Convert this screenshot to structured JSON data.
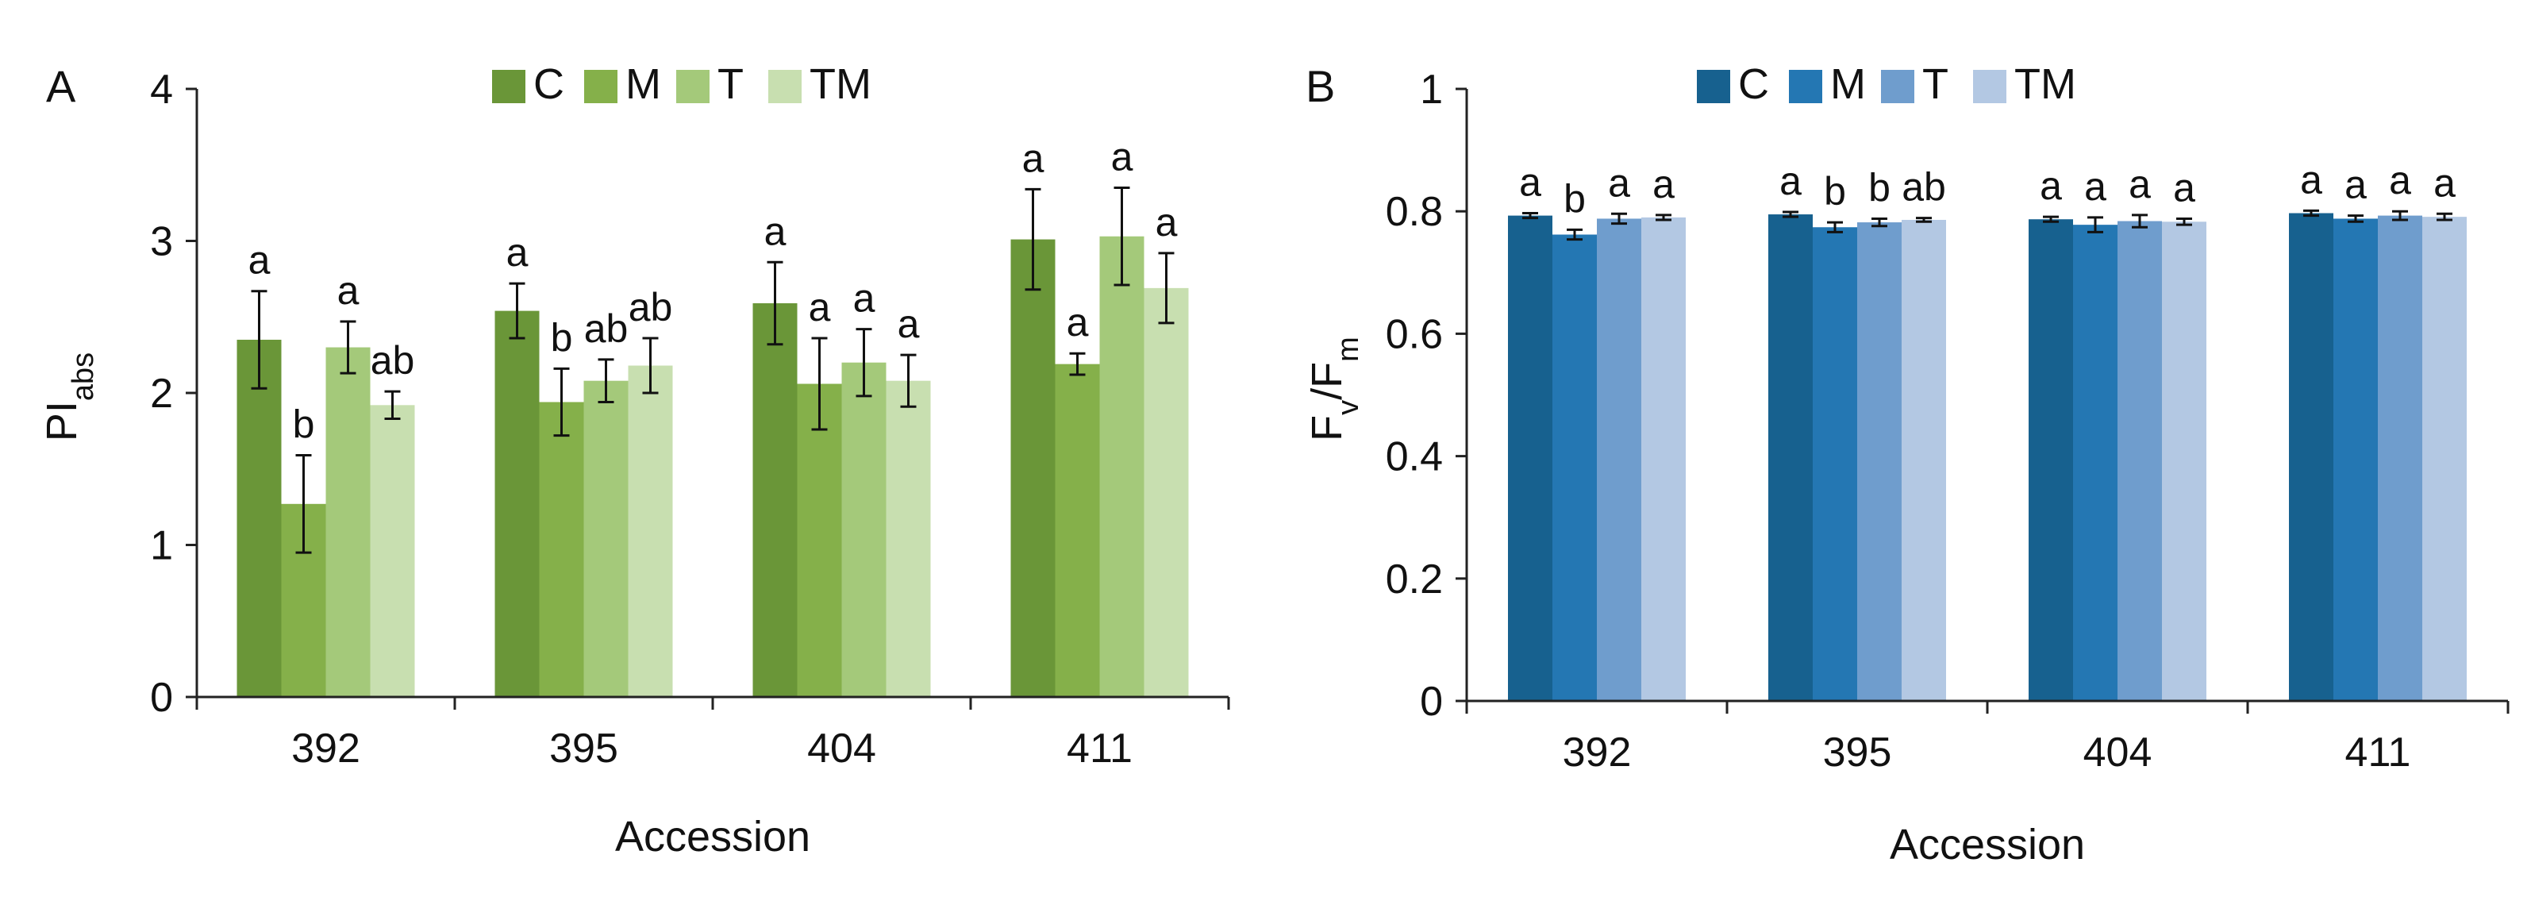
{
  "chart_data": [
    {
      "type": "bar",
      "panel": "A",
      "categories": [
        "392",
        "395",
        "404",
        "411"
      ],
      "xlabel": "Accession",
      "ylabel": "PI",
      "ylabel_sub": "abs",
      "ylim": [
        0,
        4
      ],
      "yticks": [
        "0",
        "1",
        "2",
        "3",
        "4"
      ],
      "legend_position": "top-center",
      "series": [
        {
          "name": "C",
          "color": "#6a9638",
          "values": [
            2.35,
            2.54,
            2.59,
            3.01
          ],
          "errors": [
            0.32,
            0.18,
            0.27,
            0.33
          ],
          "letters": [
            "a",
            "a",
            "a",
            "a"
          ]
        },
        {
          "name": "M",
          "color": "#85b04a",
          "values": [
            1.27,
            1.94,
            2.06,
            2.19
          ],
          "errors": [
            0.32,
            0.22,
            0.3,
            0.07
          ],
          "letters": [
            "b",
            "b",
            "a",
            "a"
          ]
        },
        {
          "name": "T",
          "color": "#a4c97a",
          "values": [
            2.3,
            2.08,
            2.2,
            3.03
          ],
          "errors": [
            0.17,
            0.14,
            0.22,
            0.32
          ],
          "letters": [
            "a",
            "ab",
            "a",
            "a"
          ]
        },
        {
          "name": "TM",
          "color": "#c8dfb0",
          "values": [
            1.92,
            2.18,
            2.08,
            2.69
          ],
          "errors": [
            0.09,
            0.18,
            0.17,
            0.23
          ],
          "letters": [
            "ab",
            "ab",
            "a",
            "a"
          ]
        }
      ]
    },
    {
      "type": "bar",
      "panel": "B",
      "categories": [
        "392",
        "395",
        "404",
        "411"
      ],
      "xlabel": "Accession",
      "ylabel": "F",
      "ylabel_sub1": "v",
      "ylabel_mid": "/F",
      "ylabel_sub2": "m",
      "ylim": [
        0,
        1
      ],
      "yticks": [
        "0",
        "0.2",
        "0.4",
        "0.6",
        "0.8",
        "1"
      ],
      "legend_position": "top-center",
      "series": [
        {
          "name": "C",
          "color": "#17618f",
          "values": [
            0.793,
            0.795,
            0.787,
            0.797
          ],
          "errors": [
            0.004,
            0.004,
            0.004,
            0.004
          ],
          "letters": [
            "a",
            "a",
            "a",
            "a"
          ]
        },
        {
          "name": "M",
          "color": "#2477b3",
          "values": [
            0.762,
            0.774,
            0.778,
            0.788
          ],
          "errors": [
            0.008,
            0.008,
            0.012,
            0.005
          ],
          "letters": [
            "b",
            "b",
            "a",
            "a"
          ]
        },
        {
          "name": "T",
          "color": "#6f9dcd",
          "values": [
            0.788,
            0.782,
            0.784,
            0.793
          ],
          "errors": [
            0.008,
            0.006,
            0.01,
            0.007
          ],
          "letters": [
            "a",
            "b",
            "a",
            "a"
          ]
        },
        {
          "name": "TM",
          "color": "#b3c8e3",
          "values": [
            0.79,
            0.786,
            0.783,
            0.791
          ],
          "errors": [
            0.004,
            0.003,
            0.005,
            0.005
          ],
          "letters": [
            "a",
            "ab",
            "a",
            "a"
          ]
        }
      ]
    }
  ]
}
